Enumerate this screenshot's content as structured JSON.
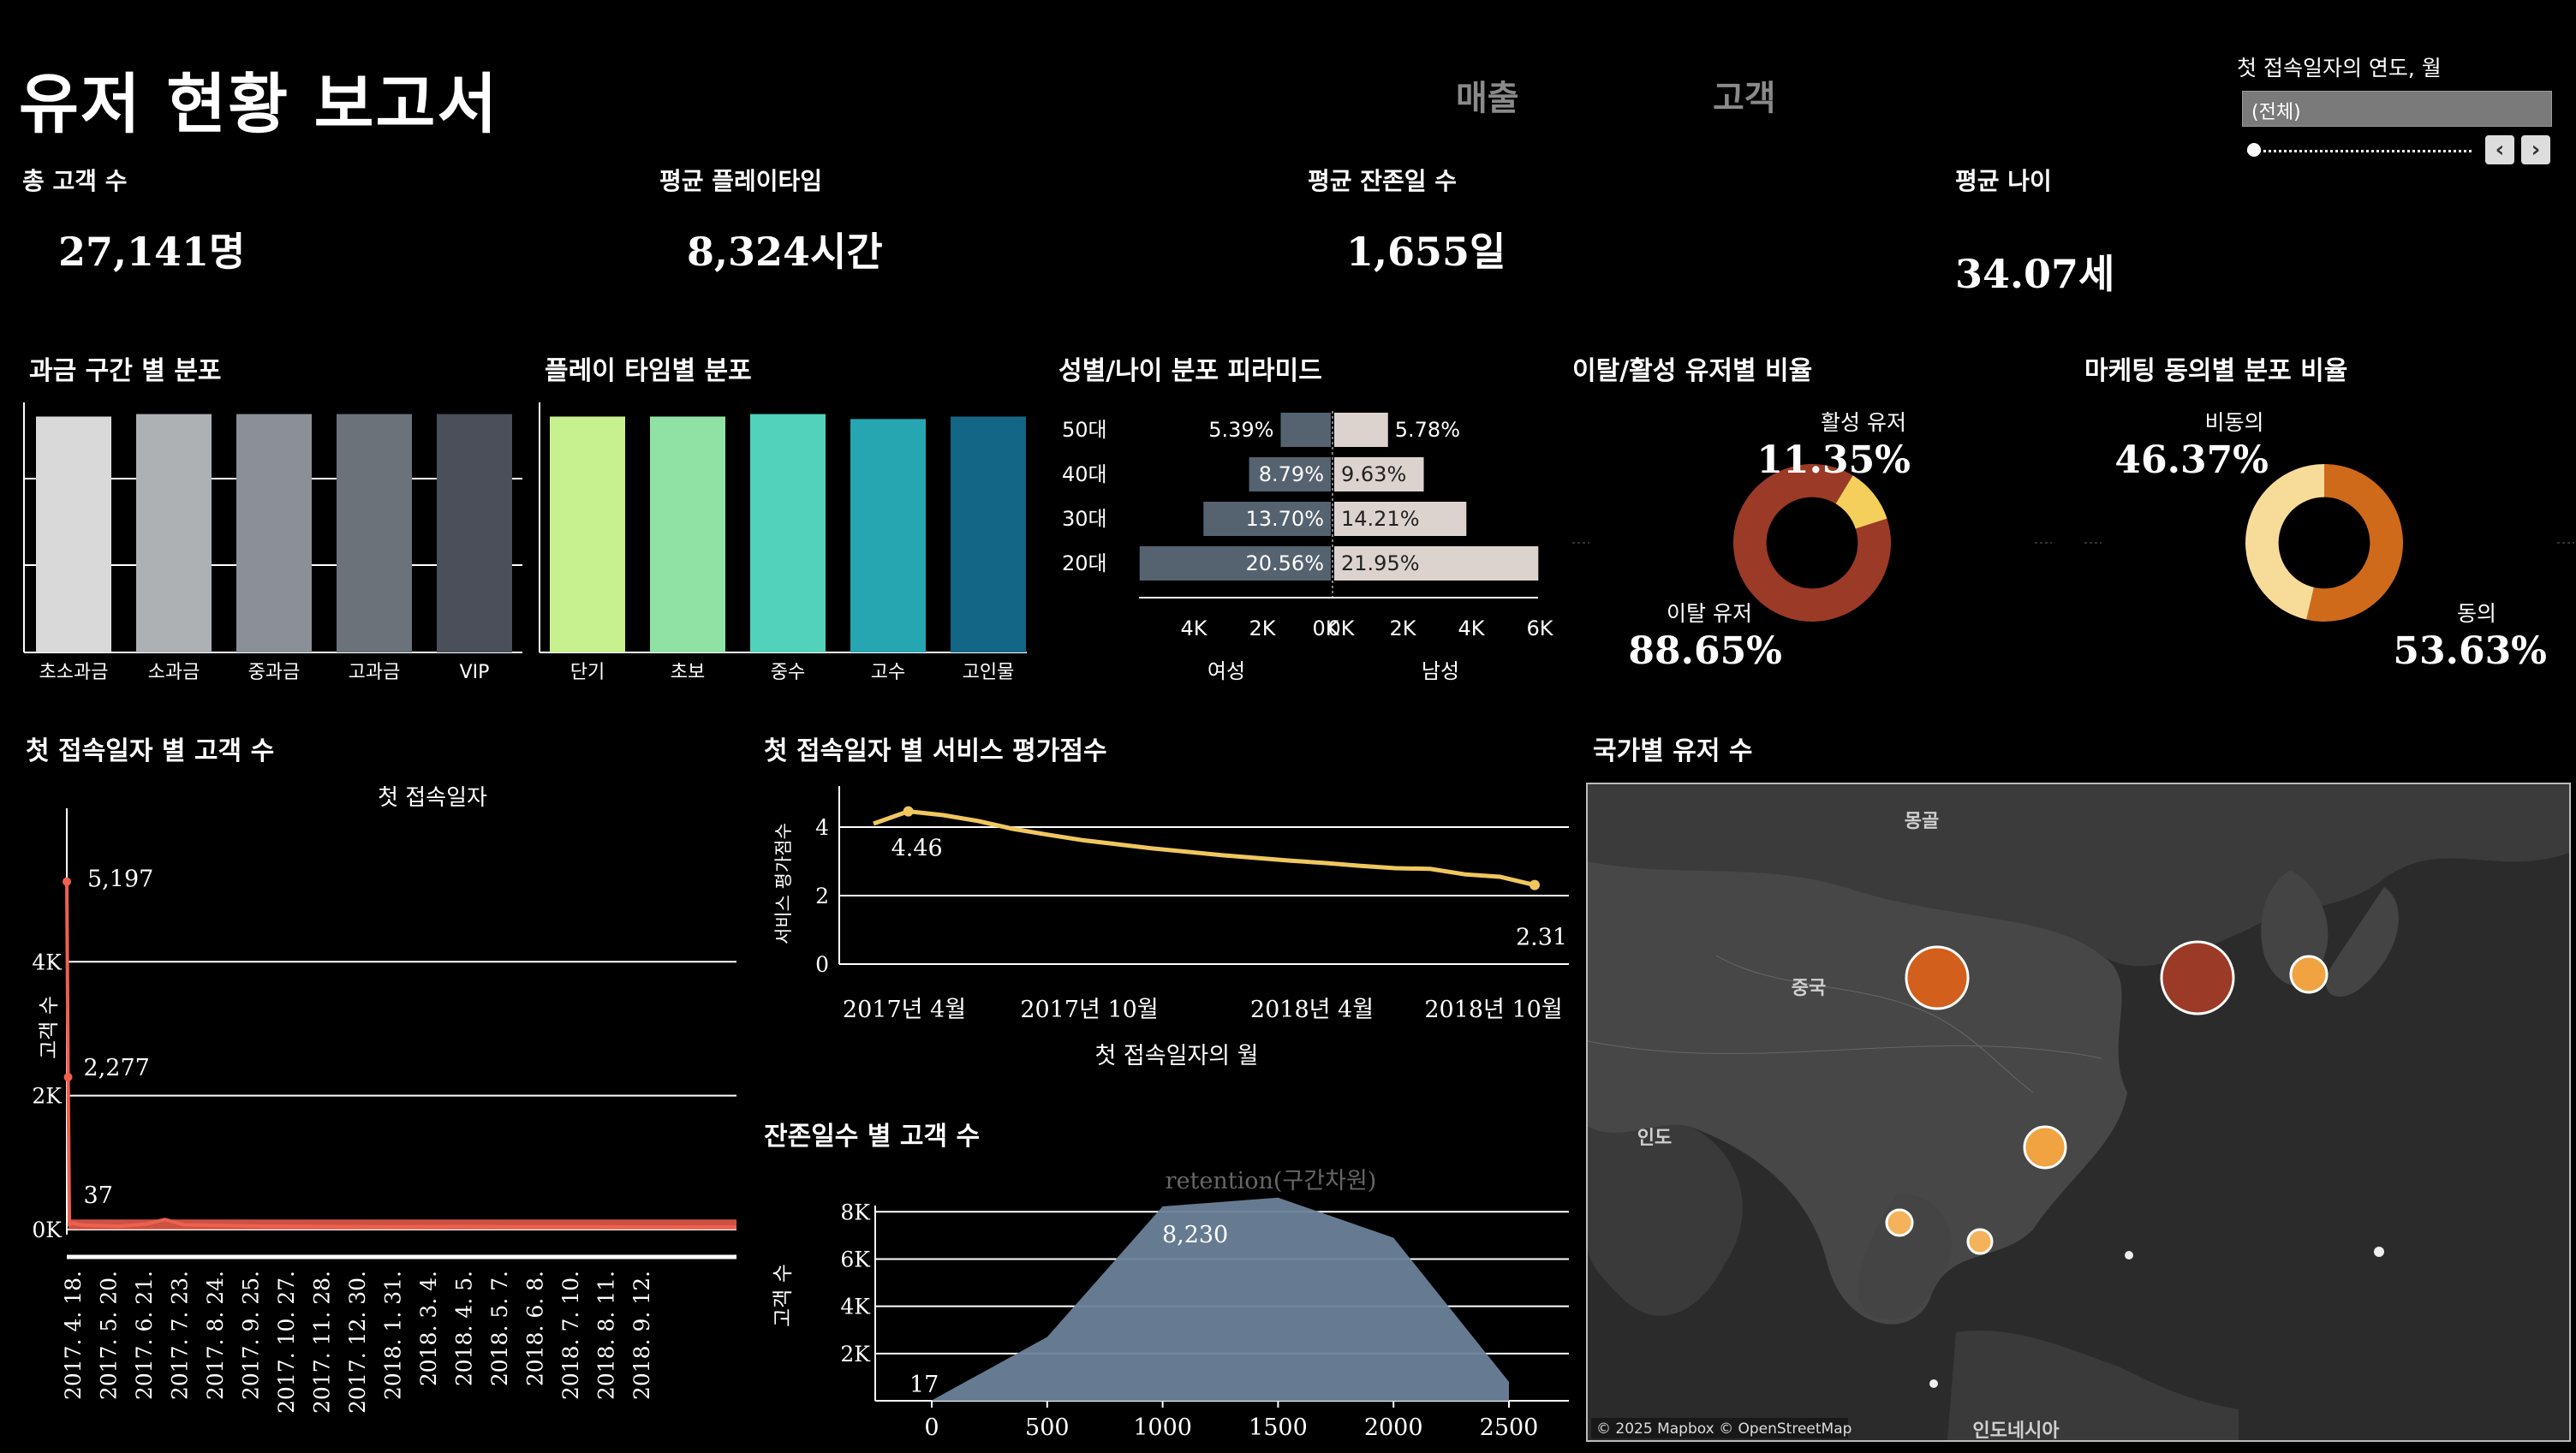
{
  "header": {
    "title": "유저 현황 보고서",
    "tab_sales": "매출",
    "tab_customer": "고객"
  },
  "filter": {
    "label": "첫 접속일자의 연도, 월",
    "value": "(전체)",
    "prev_icon": "chevron-left-icon",
    "next_icon": "chevron-right-icon",
    "slider_position": 0
  },
  "kpis": [
    {
      "label": "총 고객 수",
      "value": "27,141명"
    },
    {
      "label": "평균 플레이타임",
      "value": "8,324시간"
    },
    {
      "label": "평균 잔존일 수",
      "value": "1,655일"
    },
    {
      "label": "평균 나이",
      "value": "34.07세"
    }
  ],
  "charts": {
    "payment": {
      "title": "과금 구간 별 분포"
    },
    "playtime": {
      "title": "플레이 타임별 분포"
    },
    "pyramid": {
      "title": "성별/나이 분포 피라미드"
    },
    "churn": {
      "title": "이탈/활성 유저별 비율"
    },
    "marketing": {
      "title": "마케팅 동의별 분포 비율"
    },
    "firstvisit": {
      "title": "첫 접속일자 별 고객 수"
    },
    "rating": {
      "title": "첫 접속일자 별 서비스 평가점수"
    },
    "retention": {
      "title": "잔존일수 별 고객 수"
    },
    "map": {
      "title": "국가별 유저 수"
    }
  },
  "colors": {
    "background": "#000000",
    "churn": "#9b3a26",
    "active": "#f4cf5b",
    "agree": "#cf6a1a",
    "disagree": "#f7dc99",
    "female": "#556270",
    "male": "#dcd3cf",
    "firstvisit_line": "#f0604f",
    "rating_line": "#f0c75e",
    "retention_area": "#6b8299"
  },
  "chart_data": [
    {
      "type": "bar",
      "title": "과금 구간 별 분포",
      "categories": [
        "초소과금",
        "소과금",
        "중과금",
        "고과금",
        "VIP"
      ],
      "values": [
        0.95,
        0.96,
        0.96,
        0.96,
        0.96
      ],
      "colors": [
        "#d9d9d9",
        "#aeb1b4",
        "#8b9097",
        "#6b7279",
        "#4a4f5a"
      ],
      "grid": true
    },
    {
      "type": "bar",
      "title": "플레이 타임별 분포",
      "categories": [
        "단기",
        "초보",
        "중수",
        "고수",
        "고인물"
      ],
      "values": [
        0.95,
        0.95,
        0.96,
        0.94,
        0.95
      ],
      "colors": [
        "#c7f08f",
        "#8fe2a4",
        "#52d2bb",
        "#26a6b0",
        "#136685"
      ],
      "grid": true
    },
    {
      "type": "bar",
      "title": "성별/나이 분포 피라미드",
      "categories": [
        "50대",
        "40대",
        "30대",
        "20대"
      ],
      "series": [
        {
          "name": "여성",
          "values": [
            1463,
            2386,
            3718,
            5582
          ],
          "labels": [
            "5.39%",
            "8.79%",
            "13.70%",
            "20.56%"
          ]
        },
        {
          "name": "남성",
          "values": [
            1569,
            2613,
            3857,
            5958
          ],
          "labels": [
            "5.78%",
            "9.63%",
            "14.21%",
            "21.95%"
          ]
        }
      ],
      "ticks_left": [
        "4K",
        "2K",
        "0K"
      ],
      "ticks_right": [
        "0K",
        "2K",
        "4K",
        "6K"
      ]
    },
    {
      "type": "pie",
      "title": "이탈/활성 유저별 비율",
      "categories": [
        "이탈 유저",
        "활성 유저"
      ],
      "values": [
        88.65,
        11.35
      ],
      "labels": [
        "88.65%",
        "11.35%"
      ]
    },
    {
      "type": "pie",
      "title": "마케팅 동의별 분포 비율",
      "categories": [
        "동의",
        "비동의"
      ],
      "values": [
        53.63,
        46.37
      ],
      "labels": [
        "53.63%",
        "46.37%"
      ]
    },
    {
      "type": "line",
      "title": "첫 접속일자 별 고객 수",
      "subtitle": "첫 접속일자",
      "ylabel": "고객 수",
      "ylim": [
        0,
        5500
      ],
      "yticks": [
        "0K",
        "2K",
        "4K"
      ],
      "xticks": [
        "2017. 4. 18.",
        "2017. 5. 20.",
        "2017. 6. 21.",
        "2017. 7. 23.",
        "2017. 8. 24.",
        "2017. 9. 25.",
        "2017. 10. 27.",
        "2017. 11. 28.",
        "2017. 12. 30.",
        "2018. 1. 31.",
        "2018. 3. 4.",
        "2018. 4. 5.",
        "2018. 5. 7.",
        "2018. 6. 8.",
        "2018. 7. 10.",
        "2018. 8. 11.",
        "2018. 9. 12."
      ],
      "points": [
        {
          "x": 0,
          "y": 5197
        },
        {
          "x": 1,
          "y": 2277
        },
        {
          "x": 2,
          "y": 80
        },
        {
          "x": 5,
          "y": 100
        },
        {
          "x": 10,
          "y": 70
        },
        {
          "x": 20,
          "y": 60
        },
        {
          "x": 40,
          "y": 50
        },
        {
          "x": 60,
          "y": 80
        },
        {
          "x": 75,
          "y": 150
        },
        {
          "x": 90,
          "y": 70
        },
        {
          "x": 120,
          "y": 60
        },
        {
          "x": 150,
          "y": 50
        },
        {
          "x": 200,
          "y": 45
        },
        {
          "x": 250,
          "y": 40
        },
        {
          "x": 300,
          "y": 45
        },
        {
          "x": 350,
          "y": 40
        },
        {
          "x": 400,
          "y": 40
        },
        {
          "x": 450,
          "y": 38
        },
        {
          "x": 512,
          "y": 37
        }
      ],
      "annotations": [
        {
          "text": "5,197"
        },
        {
          "text": "2,277"
        },
        {
          "text": "37"
        }
      ]
    },
    {
      "type": "line",
      "title": "첫 접속일자 별 서비스 평가점수",
      "xlabel": "첫 접속일자의 월",
      "ylabel": "서비스 평가점수",
      "ylim": [
        0,
        4.8
      ],
      "yticks": [
        0,
        2,
        4
      ],
      "xticks": [
        "2017년 4월",
        "2017년 10월",
        "2018년 4월",
        "2018년 10월"
      ],
      "x": [
        "2017-03",
        "2017-04",
        "2017-05",
        "2017-06",
        "2017-07",
        "2017-08",
        "2017-09",
        "2017-10",
        "2017-11",
        "2017-12",
        "2018-01",
        "2018-02",
        "2018-03",
        "2018-04",
        "2018-05",
        "2018-06",
        "2018-07",
        "2018-08",
        "2018-09",
        "2018-10"
      ],
      "values": [
        4.1,
        4.46,
        4.35,
        4.18,
        3.95,
        3.78,
        3.62,
        3.5,
        3.38,
        3.28,
        3.18,
        3.1,
        3.02,
        2.95,
        2.87,
        2.8,
        2.78,
        2.62,
        2.55,
        2.31
      ],
      "annotations": [
        {
          "text": "4.46"
        },
        {
          "text": "2.31"
        }
      ]
    },
    {
      "type": "area",
      "title": "잔존일수 별 고객 수",
      "subtitle": "retention(구간차원)",
      "ylabel": "고객 수",
      "ylim": [
        0,
        8700
      ],
      "yticks": [
        "2K",
        "4K",
        "6K",
        "8K"
      ],
      "xticks": [
        0,
        500,
        1000,
        1500,
        2000,
        2500
      ],
      "x": [
        0,
        500,
        1000,
        1500,
        2000,
        2500
      ],
      "values": [
        17,
        2700,
        8230,
        8600,
        6900,
        800
      ],
      "annotations": [
        {
          "text": "8,230"
        },
        {
          "text": "17"
        }
      ]
    }
  ],
  "map": {
    "labels": [
      "몽골",
      "중국",
      "인도",
      "인도네시아"
    ],
    "attribution": "© 2025 Mapbox © OpenStreetMap"
  }
}
